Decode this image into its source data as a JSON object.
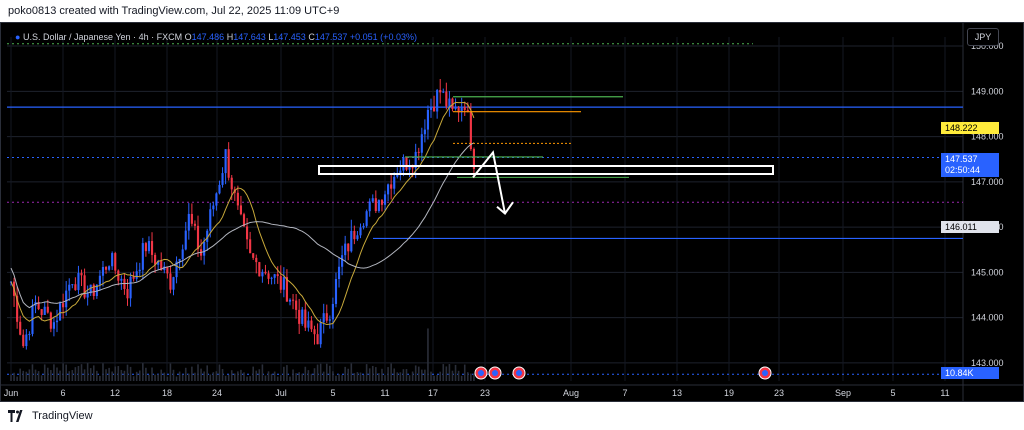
{
  "header": {
    "attribution": "poko0813 created with TradingView.com, Jul 22, 2025 11:09 UTC+9"
  },
  "symbol": {
    "name": "U.S. Dollar / Japanese Yen",
    "interval": "4h",
    "exchange": "FXCM",
    "o_label": "O",
    "o_value": "147.486",
    "h_label": "H",
    "h_value": "147.643",
    "l_label": "L",
    "l_value": "147.453",
    "c_label": "C",
    "c_value": "147.537",
    "change": "+0.051 (+0.03%)",
    "separator": "·"
  },
  "currency_button": "JPY",
  "price_tags": {
    "last_price": "147.537",
    "countdown": "02:50:44",
    "ma_value": "148.222",
    "level_value": "146.011",
    "volume": "10.84K"
  },
  "footer": {
    "brand": "TradingView"
  },
  "colors": {
    "up": "#2962ff",
    "down": "#f23645",
    "ma_fast": "#c8a93a",
    "ma_slow": "#b2b5be",
    "accent": "#2962ff"
  },
  "chart_data": {
    "type": "candlestick",
    "title": "U.S. Dollar / Japanese Yen · 4h · FXCM",
    "y_ticks": [
      "150.000",
      "149.000",
      "148.000",
      "147.000",
      "146.000",
      "145.000",
      "144.000",
      "143.000"
    ],
    "x_ticks": [
      "Jun",
      "6",
      "12",
      "18",
      "24",
      "Jul",
      "5",
      "11",
      "17",
      "23",
      "Aug",
      "7",
      "13",
      "19",
      "23",
      "Sep",
      "5",
      "11"
    ],
    "ylim": [
      142.6,
      150.2
    ],
    "levels": [
      {
        "price": 148.65,
        "color": "#2962ff",
        "style": "solid"
      },
      {
        "price": 145.75,
        "color": "#2962ff",
        "style": "solid"
      },
      {
        "price": 147.537,
        "color": "#2962ff",
        "style": "dotted"
      },
      {
        "price": 146.55,
        "color": "#9c27b0",
        "style": "dotted"
      },
      {
        "price": 150.05,
        "color": "#4caf50",
        "style": "dotted"
      },
      {
        "price": 142.75,
        "color": "#2962ff",
        "style": "dotted"
      }
    ],
    "anchor_points": [
      [
        0,
        144.8
      ],
      [
        4,
        143.4
      ],
      [
        8,
        144.3
      ],
      [
        14,
        143.9
      ],
      [
        20,
        144.9
      ],
      [
        26,
        144.5
      ],
      [
        32,
        145.3
      ],
      [
        38,
        144.6
      ],
      [
        44,
        145.6
      ],
      [
        52,
        144.8
      ],
      [
        58,
        146.2
      ],
      [
        62,
        145.4
      ],
      [
        66,
        146.5
      ],
      [
        70,
        147.6
      ],
      [
        74,
        146.3
      ],
      [
        78,
        145.3
      ],
      [
        84,
        145.0
      ],
      [
        90,
        144.6
      ],
      [
        96,
        143.8
      ],
      [
        100,
        143.6
      ],
      [
        104,
        144.2
      ],
      [
        108,
        145.3
      ],
      [
        114,
        146.2
      ],
      [
        120,
        146.6
      ],
      [
        126,
        147.3
      ],
      [
        132,
        147.6
      ],
      [
        136,
        148.6
      ],
      [
        140,
        149.0
      ],
      [
        144,
        148.5
      ],
      [
        148,
        148.8
      ],
      [
        151,
        147.5
      ]
    ],
    "anchor_x_unit": "bar index (4h bars from Jun 1)",
    "events_flags": 4
  }
}
